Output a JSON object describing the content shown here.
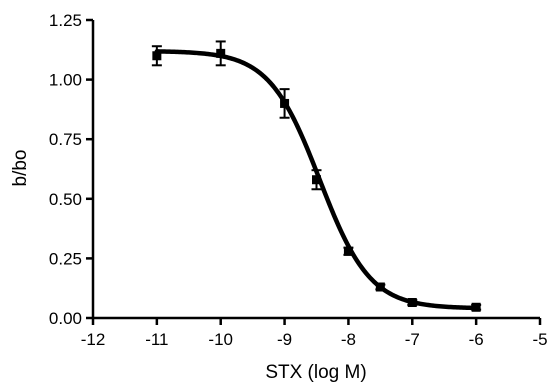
{
  "chart_data": {
    "type": "scatter",
    "xlabel": "STX (log M)",
    "ylabel": "b/bo",
    "xlim": [
      -12,
      -5
    ],
    "ylim": [
      0,
      1.25
    ],
    "x_ticks": [
      -12,
      -11,
      -10,
      -9,
      -8,
      -7,
      -6,
      -5
    ],
    "x_tick_labels": [
      "-12",
      "-11",
      "-10",
      "-9",
      "-8",
      "-7",
      "-6",
      "-5"
    ],
    "y_ticks": [
      0,
      0.25,
      0.5,
      0.75,
      1.0,
      1.25
    ],
    "y_tick_labels": [
      "0.00",
      "0.25",
      "0.50",
      "0.75",
      "1.00",
      "1.25"
    ],
    "grid": false,
    "series": [
      {
        "marker": "square",
        "color": "#000000",
        "points": [
          {
            "x": -11,
            "y": 1.1,
            "err": 0.04
          },
          {
            "x": -10,
            "y": 1.11,
            "err": 0.05
          },
          {
            "x": -9,
            "y": 0.9,
            "err": 0.06
          },
          {
            "x": -8.5,
            "y": 0.58,
            "err": 0.04
          },
          {
            "x": -8,
            "y": 0.28,
            "err": 0.015
          },
          {
            "x": -7.5,
            "y": 0.13,
            "err": 0.01
          },
          {
            "x": -7,
            "y": 0.065,
            "err": 0.01
          },
          {
            "x": -6,
            "y": 0.045,
            "err": 0.01
          }
        ]
      }
    ],
    "fit": {
      "model": "four-parameter logistic",
      "color": "#000000",
      "top": 1.12,
      "bottom": 0.04,
      "log_ic50": -8.45,
      "hill_slope": -1.1,
      "x_range": [
        -11,
        -6
      ]
    }
  }
}
